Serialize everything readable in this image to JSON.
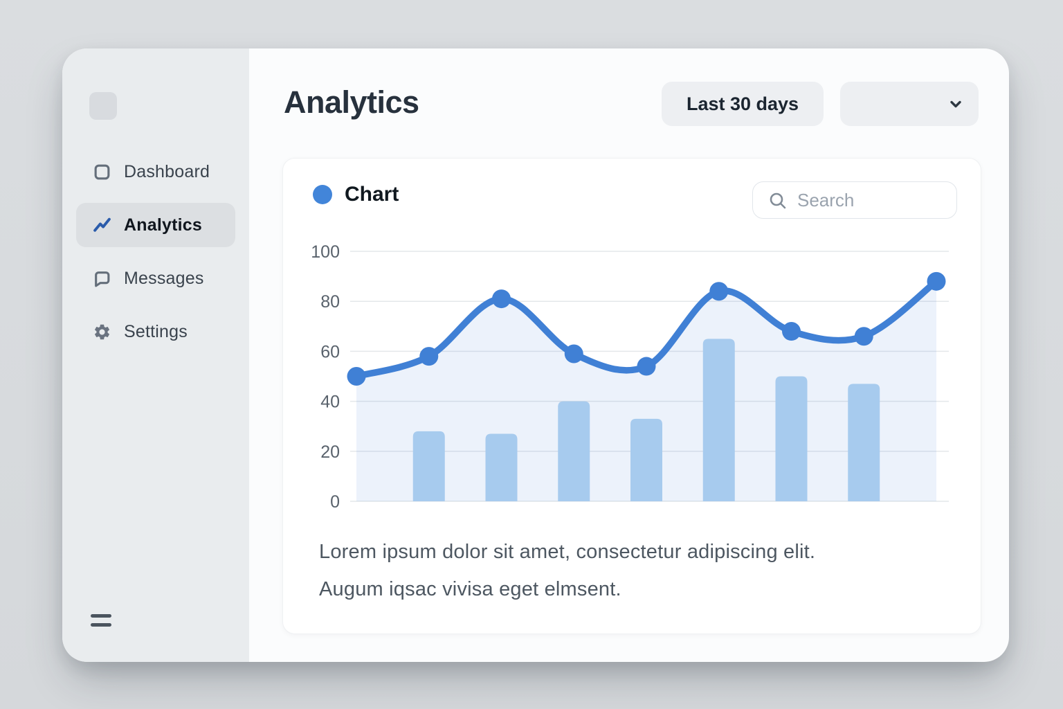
{
  "header": {
    "title": "Analytics",
    "range_label": "Last 30 days"
  },
  "sidebar": {
    "items": [
      {
        "label": "Dashboard",
        "icon": "dashboard-square-icon",
        "active": false
      },
      {
        "label": "Analytics",
        "icon": "trend-line-icon",
        "active": true
      },
      {
        "label": "Messages",
        "icon": "chat-bubble-icon",
        "active": false
      },
      {
        "label": "Settings",
        "icon": "gear-icon",
        "active": false
      }
    ]
  },
  "card": {
    "legend_label": "Chart",
    "search_placeholder": "Search",
    "description_lines": [
      "Lorem ipsum dolor sit amet, consectetur adipiscing elit.",
      "Augum iqsac vivisa eget elmsent."
    ]
  },
  "colors": {
    "accent_blue": "#4080d5",
    "legend_dot_blue": "#4285d9",
    "bar_blue": "#a7cbee",
    "area_blue_opacity": 0.1,
    "gridline": "#e4e7ea",
    "tick_text": "#59626c",
    "nav_icon_blue": "#2b5cab",
    "nav_icon_gray": "#646e7a"
  },
  "chart_data": {
    "type": "line+bar",
    "title": "Chart",
    "x": [
      1,
      2,
      3,
      4,
      5,
      6,
      7,
      8,
      9
    ],
    "x_axis_labels": "none",
    "series": [
      {
        "name": "trend-line",
        "type": "line",
        "values": [
          50,
          58,
          81,
          59,
          54,
          84,
          68,
          66,
          88
        ]
      },
      {
        "name": "volume-bars",
        "type": "bar",
        "values": [
          null,
          28,
          27,
          40,
          33,
          65,
          50,
          47,
          null
        ]
      }
    ],
    "ylim": [
      0,
      100
    ],
    "yticks": [
      0,
      20,
      40,
      60,
      80,
      100
    ],
    "grid": "horizontal",
    "legend": {
      "label": "Chart",
      "position": "top-left"
    }
  }
}
